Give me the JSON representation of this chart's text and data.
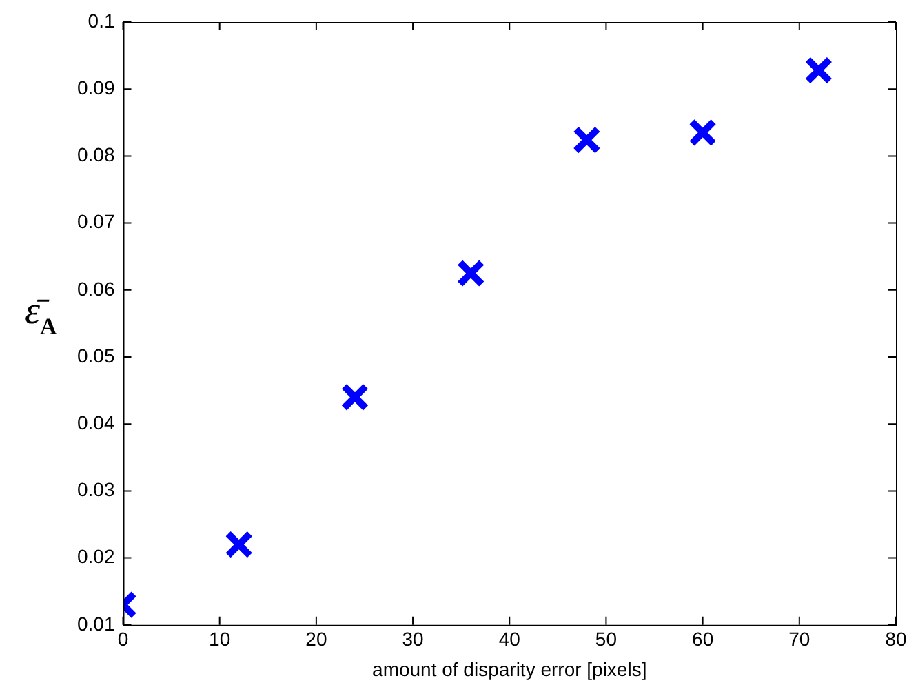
{
  "chart_data": {
    "type": "scatter",
    "xlabel": "amount of disparity error [pixels]",
    "ylabel": "ε̄$_{A}$",
    "x": [
      0,
      12,
      24,
      36,
      48,
      60,
      72
    ],
    "series": [
      {
        "color": "#0000ff",
        "values": [
          0.013,
          0.022,
          0.044,
          0.0625,
          0.0824,
          0.0835,
          0.0928
        ]
      }
    ],
    "xlim": [
      0,
      80
    ],
    "xticks": [
      0,
      10,
      20,
      30,
      40,
      50,
      60,
      70,
      80
    ],
    "ylim": [
      0.01,
      0.1
    ],
    "yticks": [
      0.01,
      0.02,
      0.03,
      0.04,
      0.05,
      0.06,
      0.07,
      0.08,
      0.09,
      0.1
    ],
    "grid": false,
    "legend": false,
    "marker": "cross"
  }
}
